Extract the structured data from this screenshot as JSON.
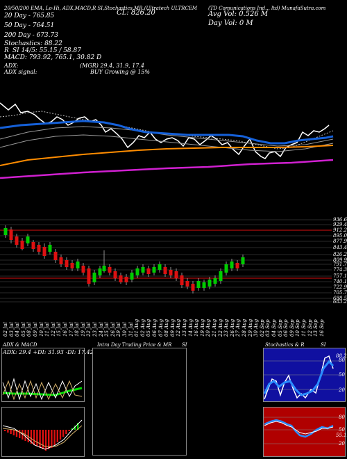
{
  "header": {
    "title_line": "20/50/200 EMA, Lo-Hi, ADX,MACD,R     SI,Stochastics,MR       (Ultratech ULTRCEM",
    "close": "CL: 826.20",
    "company": "(TD Comunications Ind... ltd) MunafaSutra.com",
    "avg_vol": "Avg Vol: 0.526  M",
    "day_vol": "Day Vol: 0   M",
    "ema20": "20 Day - 765.85",
    "ema50": "50 Day - 764.51",
    "ema200": "200 Day - 673.73",
    "stochastics": "Stochastics: 88.22",
    "rsi_r": "R",
    "rsi": "SI 14/5: 55.15 / 58.87",
    "macd": "MACD: 793.92, 765.1, 30.82  D",
    "adx_label": "ADX:",
    "adx_values": "(MGR) 29.4,  31.9,  17.4",
    "adx_signal_label": "ADX signal:",
    "adx_signal": "BUY Growing @ 15%"
  },
  "price_levels": [
    "936.6",
    "929.45",
    "912.28",
    "895.05",
    "877.94",
    "843.41",
    "826.2",
    "809.99",
    "791.76",
    "774.36",
    "757.15",
    "740.14",
    "722.93",
    "705.73",
    "688.52",
    "683.29"
  ],
  "dates": [
    "02 Jul",
    "03 Jul",
    "04 Jul",
    "05 Jul",
    "08 Jul",
    "09 Jul",
    "10 Jul",
    "11 Jul",
    "12 Jul",
    "15 Jul",
    "16 Jul",
    "17 Jul",
    "18 Jul",
    "19 Jul",
    "22 Jul",
    "23 Jul",
    "24 Jul",
    "25 Jul",
    "26 Jul",
    "29 Jul",
    "30 Jul",
    "31 Jul",
    "01 Aug",
    "02 Aug",
    "05 Aug",
    "06 Aug",
    "07 Aug",
    "08 Aug",
    "09 Aug",
    "12 Aug",
    "13 Aug",
    "14 Aug",
    "16 Aug",
    "19 Aug",
    "20 Aug",
    "21 Aug",
    "22 Aug",
    "23 Aug",
    "26 Aug",
    "27 Aug",
    "28 Aug",
    "29 Aug",
    "30 Aug",
    "02 Sep",
    "03 Sep",
    "04 Sep",
    "05 Sep",
    "06 Sep",
    "09 Sep",
    "10 Sep",
    "11 Sep",
    "12 Sep",
    "13 Sep",
    "16 Sep"
  ],
  "bottom": {
    "adx_title": "ADX  & MACD",
    "adx_values": "ADX: 29.4  +DI: 31.93  -DI: 17.42",
    "intraday_title": "Intra  Day Trading Price  & MR",
    "intraday_title_si": "SI",
    "stoch_title": "Stochastics & R",
    "stoch_title_si": "SI",
    "stoch_levels": [
      "80",
      "50",
      "20"
    ],
    "rsi_levels": [
      "80",
      "50",
      "20"
    ],
    "stoch_value": "88.22",
    "rsi_value": "55.15"
  },
  "colors": {
    "ema20": "#1560d8",
    "ema50": "#ff8c00",
    "ema200": "#d020d0",
    "up": "#00cc00",
    "down": "#dd1111"
  }
}
